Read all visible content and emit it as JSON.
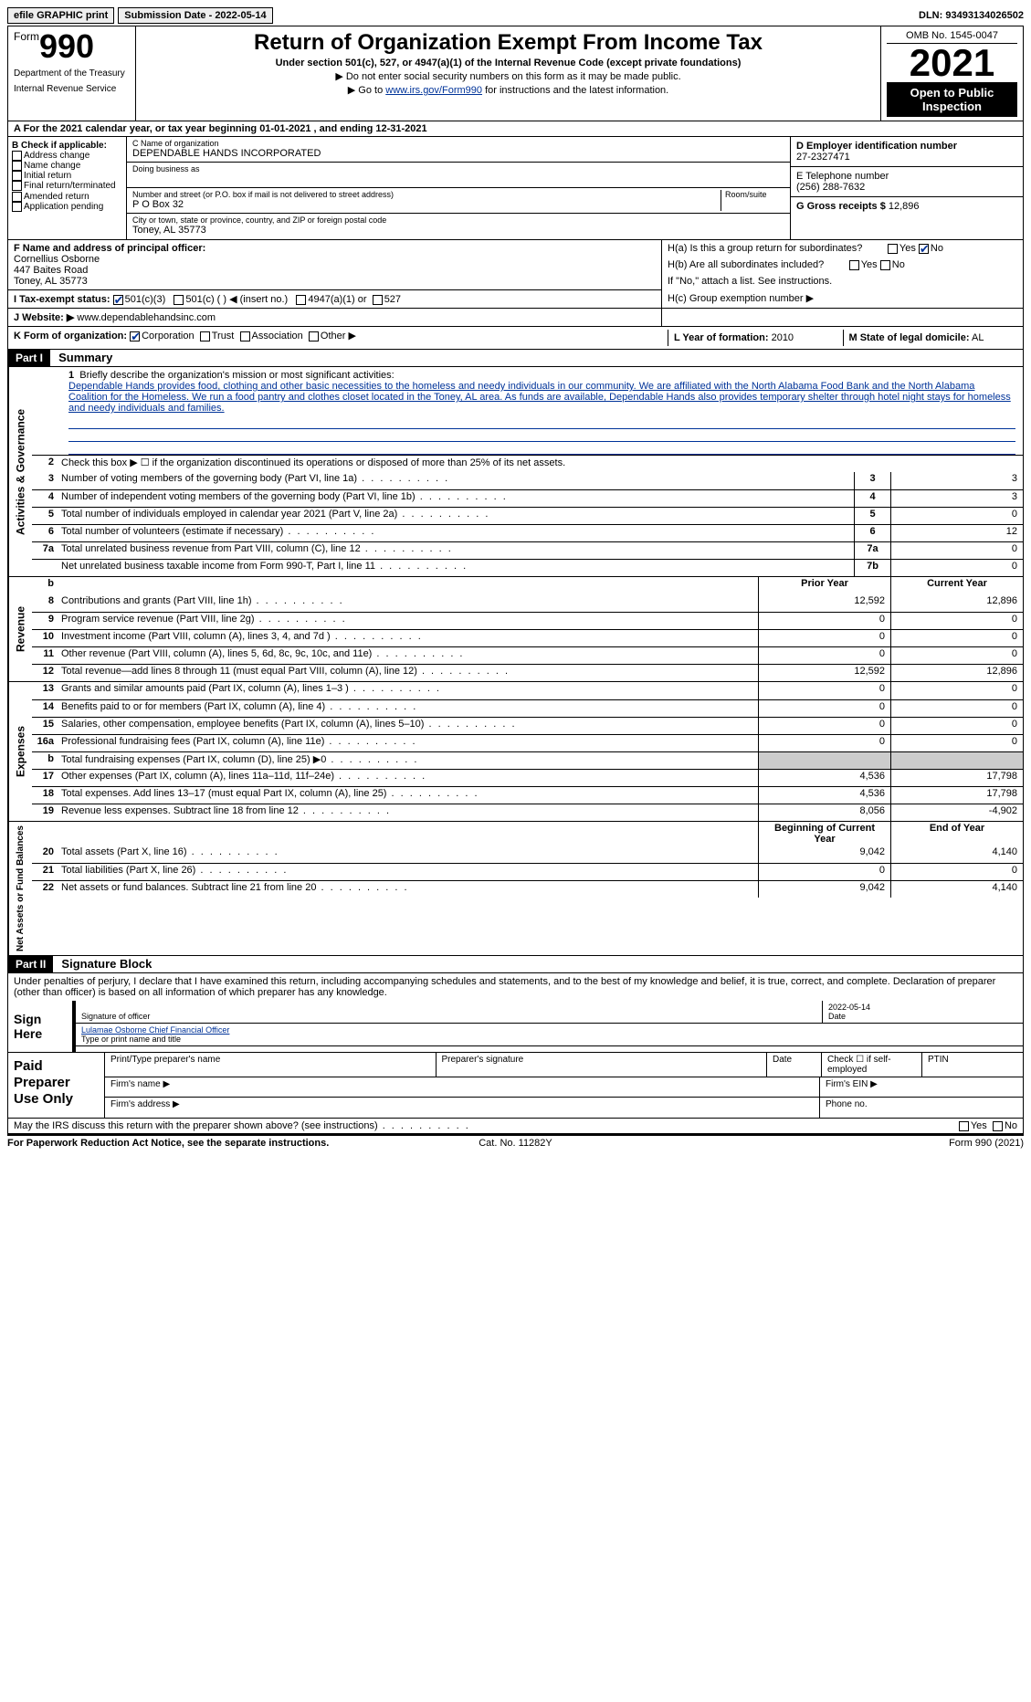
{
  "topbar": {
    "efile": "efile GRAPHIC print",
    "submission": "Submission Date - 2022-05-14",
    "dln": "DLN: 93493134026502"
  },
  "header": {
    "form_word": "Form",
    "form_no": "990",
    "dept": "Department of the Treasury",
    "irs": "Internal Revenue Service",
    "title": "Return of Organization Exempt From Income Tax",
    "subtitle": "Under section 501(c), 527, or 4947(a)(1) of the Internal Revenue Code (except private foundations)",
    "note1": "▶ Do not enter social security numbers on this form as it may be made public.",
    "note2_pre": "▶ Go to ",
    "note2_link": "www.irs.gov/Form990",
    "note2_post": " for instructions and the latest information.",
    "omb": "OMB No. 1545-0047",
    "year": "2021",
    "open": "Open to Public Inspection"
  },
  "period": "A For the 2021 calendar year, or tax year beginning 01-01-2021     , and ending 12-31-2021",
  "B": {
    "label": "B Check if applicable:",
    "opts": [
      "Address change",
      "Name change",
      "Initial return",
      "Final return/terminated",
      "Amended return",
      "Application pending"
    ]
  },
  "C": {
    "name_label": "C Name of organization",
    "name": "DEPENDABLE HANDS INCORPORATED",
    "dba_label": "Doing business as",
    "dba": "",
    "street_label": "Number and street (or P.O. box if mail is not delivered to street address)",
    "street": "P O Box 32",
    "suite_label": "Room/suite",
    "city_label": "City or town, state or province, country, and ZIP or foreign postal code",
    "city": "Toney, AL  35773"
  },
  "D": {
    "ein_label": "D Employer identification number",
    "ein": "27-2327471",
    "phone_label": "E Telephone number",
    "phone": "(256) 288-7632",
    "gross_label": "G Gross receipts $",
    "gross": "12,896"
  },
  "F": {
    "label": "F  Name and address of principal officer:",
    "name": "Cornellius Osborne",
    "addr1": "447 Baites Road",
    "addr2": "Toney, AL  35773"
  },
  "H": {
    "a": "H(a)  Is this a group return for subordinates?",
    "a_yes": "Yes",
    "a_no": "No",
    "b": "H(b)  Are all subordinates included?",
    "b_note": "If \"No,\" attach a list. See instructions.",
    "c": "H(c)  Group exemption number ▶"
  },
  "I": {
    "label": "I   Tax-exempt status:",
    "o1": "501(c)(3)",
    "o2": "501(c) (  ) ◀ (insert no.)",
    "o3": "4947(a)(1) or",
    "o4": "527"
  },
  "J": {
    "label": "J  Website: ▶",
    "val": "www.dependablehandsinc.com"
  },
  "K": {
    "label": "K Form of organization:",
    "opts": [
      "Corporation",
      "Trust",
      "Association",
      "Other ▶"
    ]
  },
  "L": {
    "label": "L Year of formation:",
    "val": "2010"
  },
  "M": {
    "label": "M State of legal domicile:",
    "val": "AL"
  },
  "partI": {
    "hdr": "Part I",
    "title": "Summary"
  },
  "mission": {
    "num": "1",
    "label": "Briefly describe the organization's mission or most significant activities:",
    "text": "Dependable Hands provides food, clothing and other basic necessities to the homeless and needy individuals in our community. We are affiliated with the North Alabama Food Bank and the North Alabama Coalition for the Homeless. We run a food pantry and clothes closet located in the Toney, AL area. As funds are available, Dependable Hands also provides temporary shelter through hotel night stays for homeless and needy individuals and families."
  },
  "gov": {
    "l2": "Check this box ▶ ☐  if the organization discontinued its operations or disposed of more than 25% of its net assets.",
    "rows": [
      {
        "n": "3",
        "d": "Number of voting members of the governing body (Part VI, line 1a)",
        "box": "3",
        "v": "3"
      },
      {
        "n": "4",
        "d": "Number of independent voting members of the governing body (Part VI, line 1b)",
        "box": "4",
        "v": "3"
      },
      {
        "n": "5",
        "d": "Total number of individuals employed in calendar year 2021 (Part V, line 2a)",
        "box": "5",
        "v": "0"
      },
      {
        "n": "6",
        "d": "Total number of volunteers (estimate if necessary)",
        "box": "6",
        "v": "12"
      },
      {
        "n": "7a",
        "d": "Total unrelated business revenue from Part VIII, column (C), line 12",
        "box": "7a",
        "v": "0"
      },
      {
        "n": "",
        "d": "Net unrelated business taxable income from Form 990-T, Part I, line 11",
        "box": "7b",
        "v": "0"
      }
    ]
  },
  "rev": {
    "hdr_prior": "Prior Year",
    "hdr_curr": "Current Year",
    "rows": [
      {
        "n": "8",
        "d": "Contributions and grants (Part VIII, line 1h)",
        "p": "12,592",
        "c": "12,896"
      },
      {
        "n": "9",
        "d": "Program service revenue (Part VIII, line 2g)",
        "p": "0",
        "c": "0"
      },
      {
        "n": "10",
        "d": "Investment income (Part VIII, column (A), lines 3, 4, and 7d )",
        "p": "0",
        "c": "0"
      },
      {
        "n": "11",
        "d": "Other revenue (Part VIII, column (A), lines 5, 6d, 8c, 9c, 10c, and 11e)",
        "p": "0",
        "c": "0"
      },
      {
        "n": "12",
        "d": "Total revenue—add lines 8 through 11 (must equal Part VIII, column (A), line 12)",
        "p": "12,592",
        "c": "12,896"
      }
    ]
  },
  "exp": {
    "rows": [
      {
        "n": "13",
        "d": "Grants and similar amounts paid (Part IX, column (A), lines 1–3 )",
        "p": "0",
        "c": "0"
      },
      {
        "n": "14",
        "d": "Benefits paid to or for members (Part IX, column (A), line 4)",
        "p": "0",
        "c": "0"
      },
      {
        "n": "15",
        "d": "Salaries, other compensation, employee benefits (Part IX, column (A), lines 5–10)",
        "p": "0",
        "c": "0"
      },
      {
        "n": "16a",
        "d": "Professional fundraising fees (Part IX, column (A), line 11e)",
        "p": "0",
        "c": "0"
      },
      {
        "n": "b",
        "d": "Total fundraising expenses (Part IX, column (D), line 25) ▶0",
        "p": "",
        "c": "",
        "shade": true
      },
      {
        "n": "17",
        "d": "Other expenses (Part IX, column (A), lines 11a–11d, 11f–24e)",
        "p": "4,536",
        "c": "17,798"
      },
      {
        "n": "18",
        "d": "Total expenses. Add lines 13–17 (must equal Part IX, column (A), line 25)",
        "p": "4,536",
        "c": "17,798"
      },
      {
        "n": "19",
        "d": "Revenue less expenses. Subtract line 18 from line 12",
        "p": "8,056",
        "c": "-4,902"
      }
    ]
  },
  "net": {
    "hdr_beg": "Beginning of Current Year",
    "hdr_end": "End of Year",
    "rows": [
      {
        "n": "20",
        "d": "Total assets (Part X, line 16)",
        "p": "9,042",
        "c": "4,140"
      },
      {
        "n": "21",
        "d": "Total liabilities (Part X, line 26)",
        "p": "0",
        "c": "0"
      },
      {
        "n": "22",
        "d": "Net assets or fund balances. Subtract line 21 from line 20",
        "p": "9,042",
        "c": "4,140"
      }
    ]
  },
  "vlabels": {
    "gov": "Activities & Governance",
    "rev": "Revenue",
    "exp": "Expenses",
    "net": "Net Assets or Fund Balances"
  },
  "partII": {
    "hdr": "Part II",
    "title": "Signature Block"
  },
  "sig": {
    "decl": "Under penalties of perjury, I declare that I have examined this return, including accompanying schedules and statements, and to the best of my knowledge and belief, it is true, correct, and complete. Declaration of preparer (other than officer) is based on all information of which preparer has any knowledge.",
    "sign_here": "Sign Here",
    "sig_of_officer": "Signature of officer",
    "date": "2022-05-14",
    "date_lbl": "Date",
    "officer_name": "Lulamae Osborne  Chief Financial Officer",
    "type_name": "Type or print name and title"
  },
  "paid": {
    "label": "Paid Preparer Use Only",
    "h1": "Print/Type preparer's name",
    "h2": "Preparer's signature",
    "h3": "Date",
    "h4": "Check ☐ if self-employed",
    "h5": "PTIN",
    "firm_name": "Firm's name   ▶",
    "firm_ein": "Firm's EIN ▶",
    "firm_addr": "Firm's address ▶",
    "phone": "Phone no."
  },
  "discuss": {
    "q": "May the IRS discuss this return with the preparer shown above? (see instructions)",
    "yes": "Yes",
    "no": "No"
  },
  "footer": {
    "l": "For Paperwork Reduction Act Notice, see the separate instructions.",
    "c": "Cat. No. 11282Y",
    "r": "Form 990 (2021)"
  }
}
